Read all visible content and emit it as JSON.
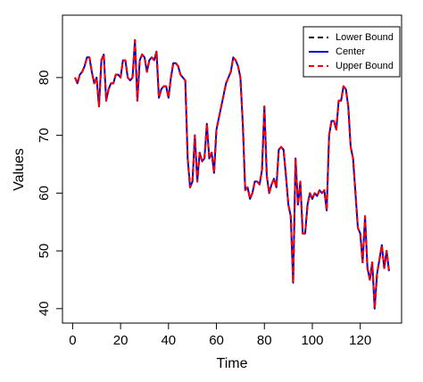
{
  "chart_data": {
    "type": "line",
    "x_label": "Time",
    "y_label": "Values",
    "x": [
      1,
      2,
      3,
      4,
      5,
      6,
      7,
      8,
      9,
      10,
      11,
      12,
      13,
      14,
      15,
      16,
      17,
      18,
      19,
      20,
      21,
      22,
      23,
      24,
      25,
      26,
      27,
      28,
      29,
      30,
      31,
      32,
      33,
      34,
      35,
      36,
      37,
      38,
      39,
      40,
      41,
      42,
      43,
      44,
      45,
      46,
      47,
      48,
      49,
      50,
      51,
      52,
      53,
      54,
      55,
      56,
      57,
      58,
      59,
      60,
      61,
      62,
      63,
      64,
      65,
      66,
      67,
      68,
      69,
      70,
      71,
      72,
      73,
      74,
      75,
      76,
      77,
      78,
      79,
      80,
      81,
      82,
      83,
      84,
      85,
      86,
      87,
      88,
      89,
      90,
      91,
      92,
      93,
      94,
      95,
      96,
      97,
      98,
      99,
      100,
      101,
      102,
      103,
      104,
      105,
      106,
      107,
      108,
      109,
      110,
      111,
      112,
      113,
      114,
      115,
      116,
      117,
      118,
      119,
      120,
      121,
      122,
      123,
      124,
      125,
      126,
      127,
      128,
      129,
      130,
      131,
      132
    ],
    "series": [
      {
        "name": "Lower Bound",
        "color": "#000000",
        "dash": true,
        "values": [
          80,
          79,
          80.5,
          81,
          82,
          83.5,
          83.5,
          81,
          79,
          80,
          75,
          83,
          84,
          76,
          78,
          79,
          79,
          80.5,
          80.5,
          80,
          83,
          83,
          80,
          79.5,
          80,
          86.5,
          76,
          83,
          84,
          83.5,
          81,
          83,
          83.5,
          83,
          84.5,
          76.5,
          78,
          78.5,
          78.5,
          76.5,
          80,
          82.5,
          82.5,
          82,
          80.5,
          80,
          79.5,
          66,
          61,
          62,
          70,
          62,
          67,
          65.5,
          66,
          72,
          66,
          67,
          63.5,
          71,
          73,
          75,
          77,
          79,
          80,
          81,
          83.5,
          83,
          82,
          80,
          72,
          60.5,
          61,
          59,
          60,
          62,
          62,
          61.5,
          64,
          75,
          63,
          60,
          61.5,
          62.5,
          61,
          67.5,
          68,
          67.5,
          63,
          58,
          56,
          44.5,
          66,
          58,
          62,
          53,
          53,
          58,
          60,
          59,
          60,
          59.5,
          60.5,
          60,
          60.5,
          57,
          70,
          72.5,
          72.5,
          71,
          76,
          76,
          78.5,
          78,
          75,
          68,
          66,
          60,
          54,
          53,
          48,
          56,
          47,
          45,
          48,
          40,
          46,
          48.5,
          51,
          47,
          50,
          46.5
        ]
      },
      {
        "name": "Center",
        "color": "#0000cd",
        "dash": false,
        "values": [
          80,
          79,
          80.5,
          81,
          82,
          83.5,
          83.5,
          81,
          79,
          80,
          75,
          83,
          84,
          76,
          78,
          79,
          79,
          80.5,
          80.5,
          80,
          83,
          83,
          80,
          79.5,
          80,
          86.5,
          76,
          83,
          84,
          83.5,
          81,
          83,
          83.5,
          83,
          84.5,
          76.5,
          78,
          78.5,
          78.5,
          76.5,
          80,
          82.5,
          82.5,
          82,
          80.5,
          80,
          79.5,
          66,
          61,
          62,
          70,
          62,
          67,
          65.5,
          66,
          72,
          66,
          67,
          63.5,
          71,
          73,
          75,
          77,
          79,
          80,
          81,
          83.5,
          83,
          82,
          80,
          72,
          60.5,
          61,
          59,
          60,
          62,
          62,
          61.5,
          64,
          75,
          63,
          60,
          61.5,
          62.5,
          61,
          67.5,
          68,
          67.5,
          63,
          58,
          56,
          44.5,
          66,
          58,
          62,
          53,
          53,
          58,
          60,
          59,
          60,
          59.5,
          60.5,
          60,
          60.5,
          57,
          70,
          72.5,
          72.5,
          71,
          76,
          76,
          78.5,
          78,
          75,
          68,
          66,
          60,
          54,
          53,
          48,
          56,
          47,
          45,
          48,
          40,
          46,
          48.5,
          51,
          47,
          50,
          46.5
        ]
      },
      {
        "name": "Upper Bound",
        "color": "#ff0000",
        "dash": true,
        "values": [
          80,
          79,
          80.5,
          81,
          82,
          83.5,
          83.5,
          81,
          79,
          80,
          75,
          83,
          84,
          76,
          78,
          79,
          79,
          80.5,
          80.5,
          80,
          83,
          83,
          80,
          79.5,
          80,
          86.5,
          76,
          83,
          84,
          83.5,
          81,
          83,
          83.5,
          83,
          84.5,
          76.5,
          78,
          78.5,
          78.5,
          76.5,
          80,
          82.5,
          82.5,
          82,
          80.5,
          80,
          79.5,
          66,
          61,
          62,
          70,
          62,
          67,
          65.5,
          66,
          72,
          66,
          67,
          63.5,
          71,
          73,
          75,
          77,
          79,
          80,
          81,
          83.5,
          83,
          82,
          80,
          72,
          60.5,
          61,
          59,
          60,
          62,
          62,
          61.5,
          64,
          75,
          63,
          60,
          61.5,
          62.5,
          61,
          67.5,
          68,
          67.5,
          63,
          58,
          56,
          44.5,
          66,
          58,
          62,
          53,
          53,
          58,
          60,
          59,
          60,
          59.5,
          60.5,
          60,
          60.5,
          57,
          70,
          72.5,
          72.5,
          71,
          76,
          76,
          78.5,
          78,
          75,
          68,
          66,
          60,
          54,
          53,
          48,
          56,
          47,
          45,
          48,
          40,
          46,
          48.5,
          51,
          47,
          50,
          46.5
        ]
      }
    ],
    "xlim": [
      -4.24,
      137.24
    ],
    "xticks": [
      0,
      20,
      40,
      60,
      80,
      100,
      120
    ],
    "ylim": [
      37.5,
      90.8
    ],
    "yticks": [
      40,
      50,
      60,
      70,
      80
    ],
    "legend": "top-right",
    "grid": false
  }
}
